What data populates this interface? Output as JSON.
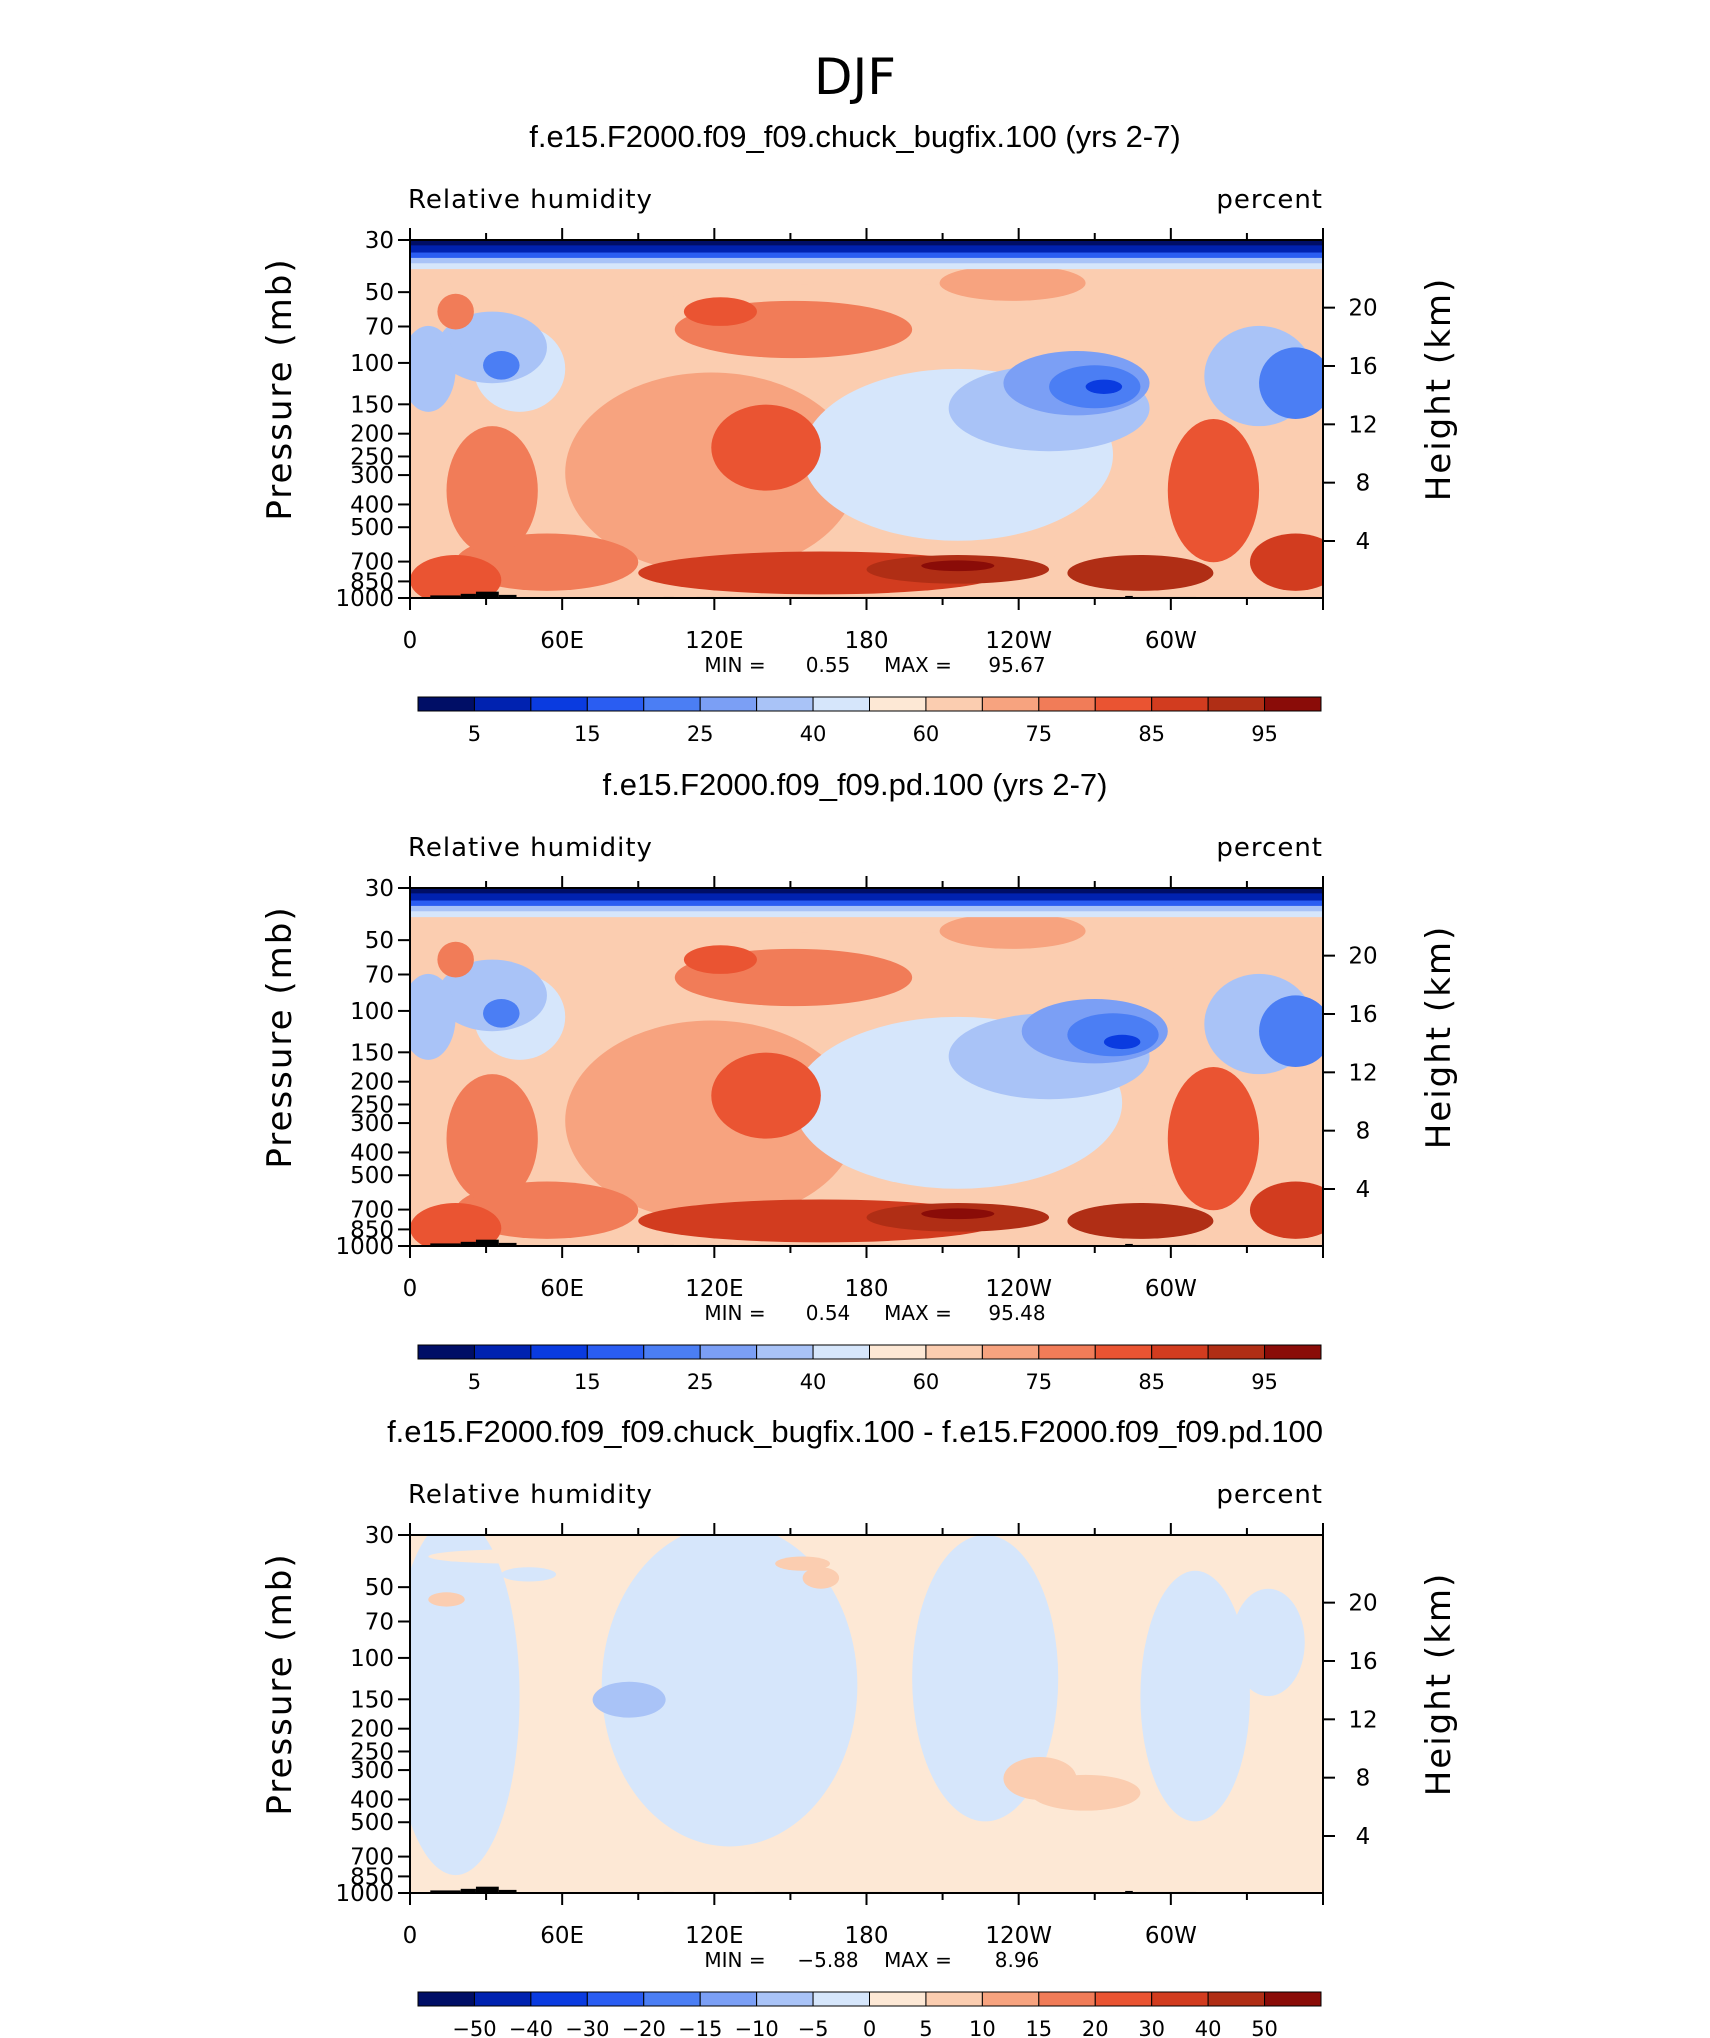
{
  "figure_title": "DJF",
  "colors": {
    "scale": [
      "#000e66",
      "#0022b0",
      "#0a3be0",
      "#2a5df2",
      "#4b7ef4",
      "#7b9ff5",
      "#a9c3f7",
      "#d6e6fb",
      "#fde8d5",
      "#fbcdb0",
      "#f7a37f",
      "#f17c58",
      "#ea5432",
      "#d23c1f",
      "#b02e15",
      "#8a0c08"
    ],
    "land": "#000000"
  },
  "chart_data": [
    {
      "type": "heatmap",
      "title": "f.e15.F2000.f09_f09.chuck_bugfix.100 (yrs 2-7)",
      "variable": "Relative humidity",
      "units": "percent",
      "xlabel": "",
      "ylabel_left": "Pressure (mb)",
      "ylabel_right": "Height (km)",
      "x_ticks": [
        "0",
        "60E",
        "120E",
        "180",
        "120W",
        "60W"
      ],
      "y_ticks_left": [
        "30",
        "50",
        "70",
        "100",
        "150",
        "200",
        "250",
        "300",
        "400",
        "500",
        "700",
        "850",
        "1000"
      ],
      "y_ticks_right": [
        "20",
        "16",
        "12",
        "8",
        "4"
      ],
      "stats": {
        "min_label": "MIN =",
        "min": "0.55",
        "max_label": "MAX =",
        "max": "95.67"
      },
      "colorbar_labels": [
        "5",
        "15",
        "25",
        "40",
        "60",
        "75",
        "85",
        "95"
      ],
      "ylim": [
        1000,
        30
      ],
      "xlim": [
        0,
        360
      ]
    },
    {
      "type": "heatmap",
      "title": "f.e15.F2000.f09_f09.pd.100 (yrs 2-7)",
      "variable": "Relative humidity",
      "units": "percent",
      "xlabel": "",
      "ylabel_left": "Pressure (mb)",
      "ylabel_right": "Height (km)",
      "x_ticks": [
        "0",
        "60E",
        "120E",
        "180",
        "120W",
        "60W"
      ],
      "y_ticks_left": [
        "30",
        "50",
        "70",
        "100",
        "150",
        "200",
        "250",
        "300",
        "400",
        "500",
        "700",
        "850",
        "1000"
      ],
      "y_ticks_right": [
        "20",
        "16",
        "12",
        "8",
        "4"
      ],
      "stats": {
        "min_label": "MIN =",
        "min": "0.54",
        "max_label": "MAX =",
        "max": "95.48"
      },
      "colorbar_labels": [
        "5",
        "15",
        "25",
        "40",
        "60",
        "75",
        "85",
        "95"
      ],
      "ylim": [
        1000,
        30
      ],
      "xlim": [
        0,
        360
      ]
    },
    {
      "type": "heatmap",
      "title": "f.e15.F2000.f09_f09.chuck_bugfix.100 - f.e15.F2000.f09_f09.pd.100",
      "variable": "Relative humidity",
      "units": "percent",
      "xlabel": "",
      "ylabel_left": "Pressure (mb)",
      "ylabel_right": "Height (km)",
      "x_ticks": [
        "0",
        "60E",
        "120E",
        "180",
        "120W",
        "60W"
      ],
      "y_ticks_left": [
        "30",
        "50",
        "70",
        "100",
        "150",
        "200",
        "250",
        "300",
        "400",
        "500",
        "700",
        "850",
        "1000"
      ],
      "y_ticks_right": [
        "20",
        "16",
        "12",
        "8",
        "4"
      ],
      "stats": {
        "min_label": "MIN =",
        "min": "−5.88",
        "max_label": "MAX =",
        "max": "8.96"
      },
      "colorbar_labels": [
        "−50",
        "−40",
        "−30",
        "−20",
        "−15",
        "−10",
        "−5",
        "0",
        "5",
        "10",
        "15",
        "20",
        "30",
        "40",
        "50"
      ],
      "ylim": [
        1000,
        30
      ],
      "xlim": [
        0,
        360
      ]
    }
  ]
}
